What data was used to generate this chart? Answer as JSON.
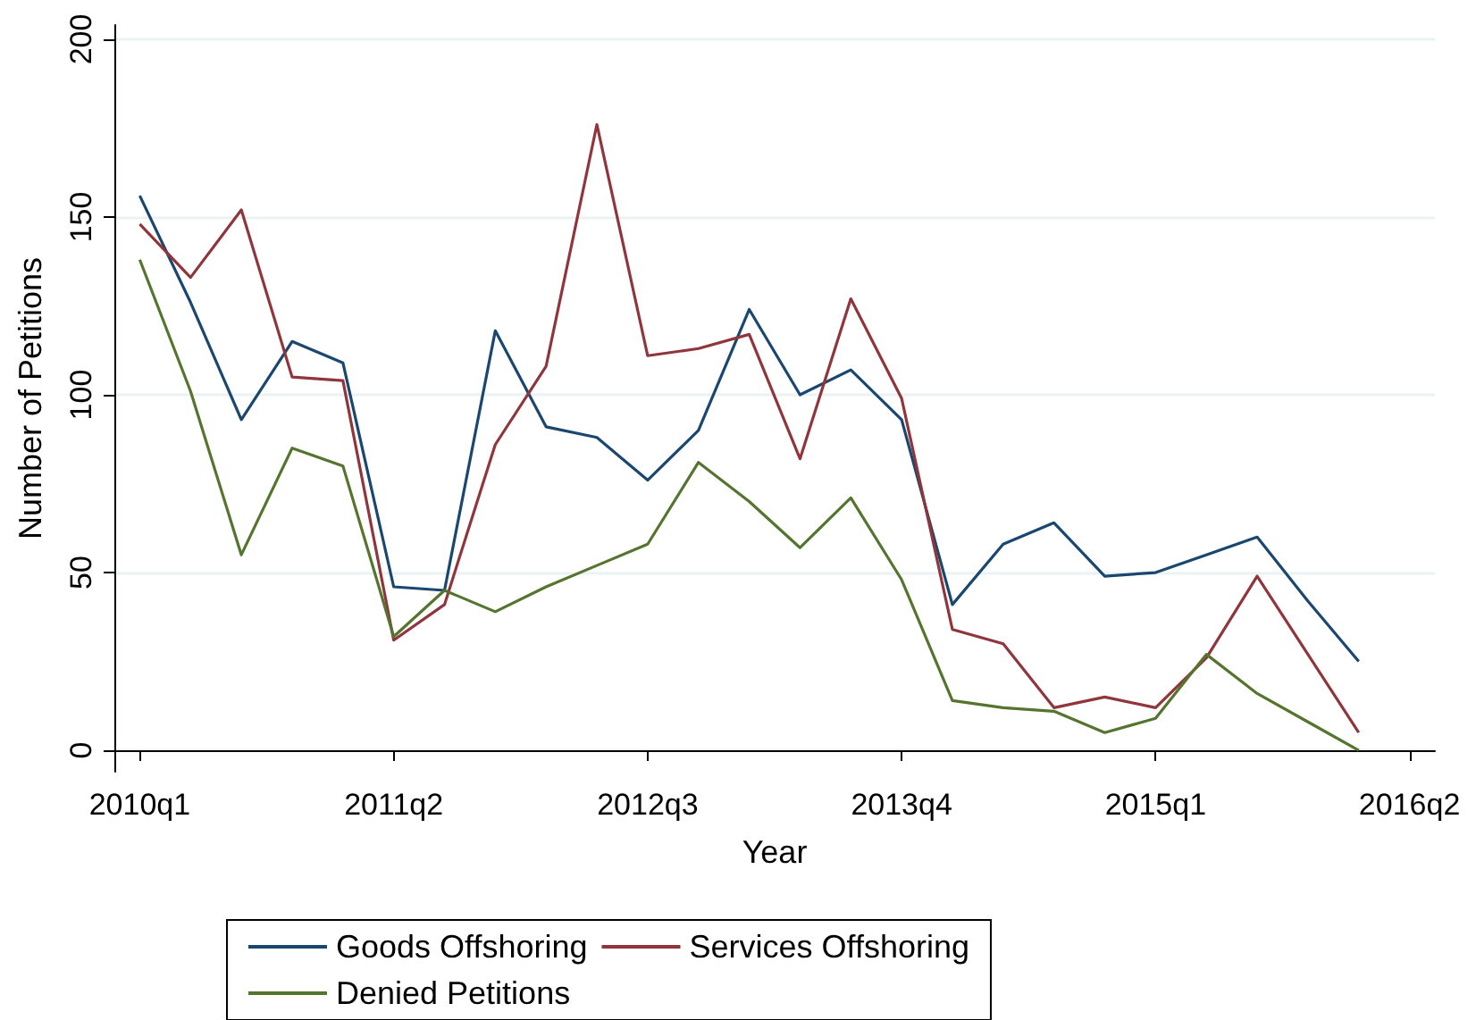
{
  "chart_data": {
    "type": "line",
    "xlabel": "Year",
    "ylabel": "Number of Petitions",
    "categories": [
      "2010q1",
      null,
      null,
      null,
      null,
      "2011q2",
      null,
      null,
      null,
      null,
      "2012q3",
      null,
      null,
      null,
      null,
      "2013q4",
      null,
      null,
      null,
      null,
      "2015q1",
      null,
      null,
      null,
      null,
      "2016q2"
    ],
    "series": [
      {
        "name": "Goods Offshoring",
        "color": "#1a476f",
        "values": [
          156,
          126,
          93,
          115,
          109,
          46,
          45,
          118,
          91,
          88,
          76,
          90,
          124,
          100,
          107,
          93,
          41,
          58,
          64,
          49,
          50,
          55,
          60,
          42,
          25,
          null
        ]
      },
      {
        "name": "Services Offshoring",
        "color": "#90353b",
        "values": [
          148,
          133,
          152,
          105,
          104,
          31,
          41,
          86,
          108,
          176,
          111,
          113,
          117,
          82,
          127,
          99,
          34,
          30,
          12,
          15,
          12,
          26,
          49,
          27,
          5,
          null
        ]
      },
      {
        "name": "Denied Petitions",
        "color": "#55752f",
        "values": [
          138,
          101,
          55,
          85,
          80,
          32,
          45,
          39,
          46,
          52,
          58,
          81,
          70,
          57,
          71,
          48,
          14,
          12,
          11,
          5,
          9,
          27,
          16,
          8,
          0,
          null
        ]
      }
    ],
    "ylim": [
      -6,
      204
    ],
    "yticks": [
      0,
      50,
      100,
      150,
      200
    ],
    "grid": "y",
    "legend": "bottom",
    "marker": "none",
    "line_style": "solid"
  }
}
